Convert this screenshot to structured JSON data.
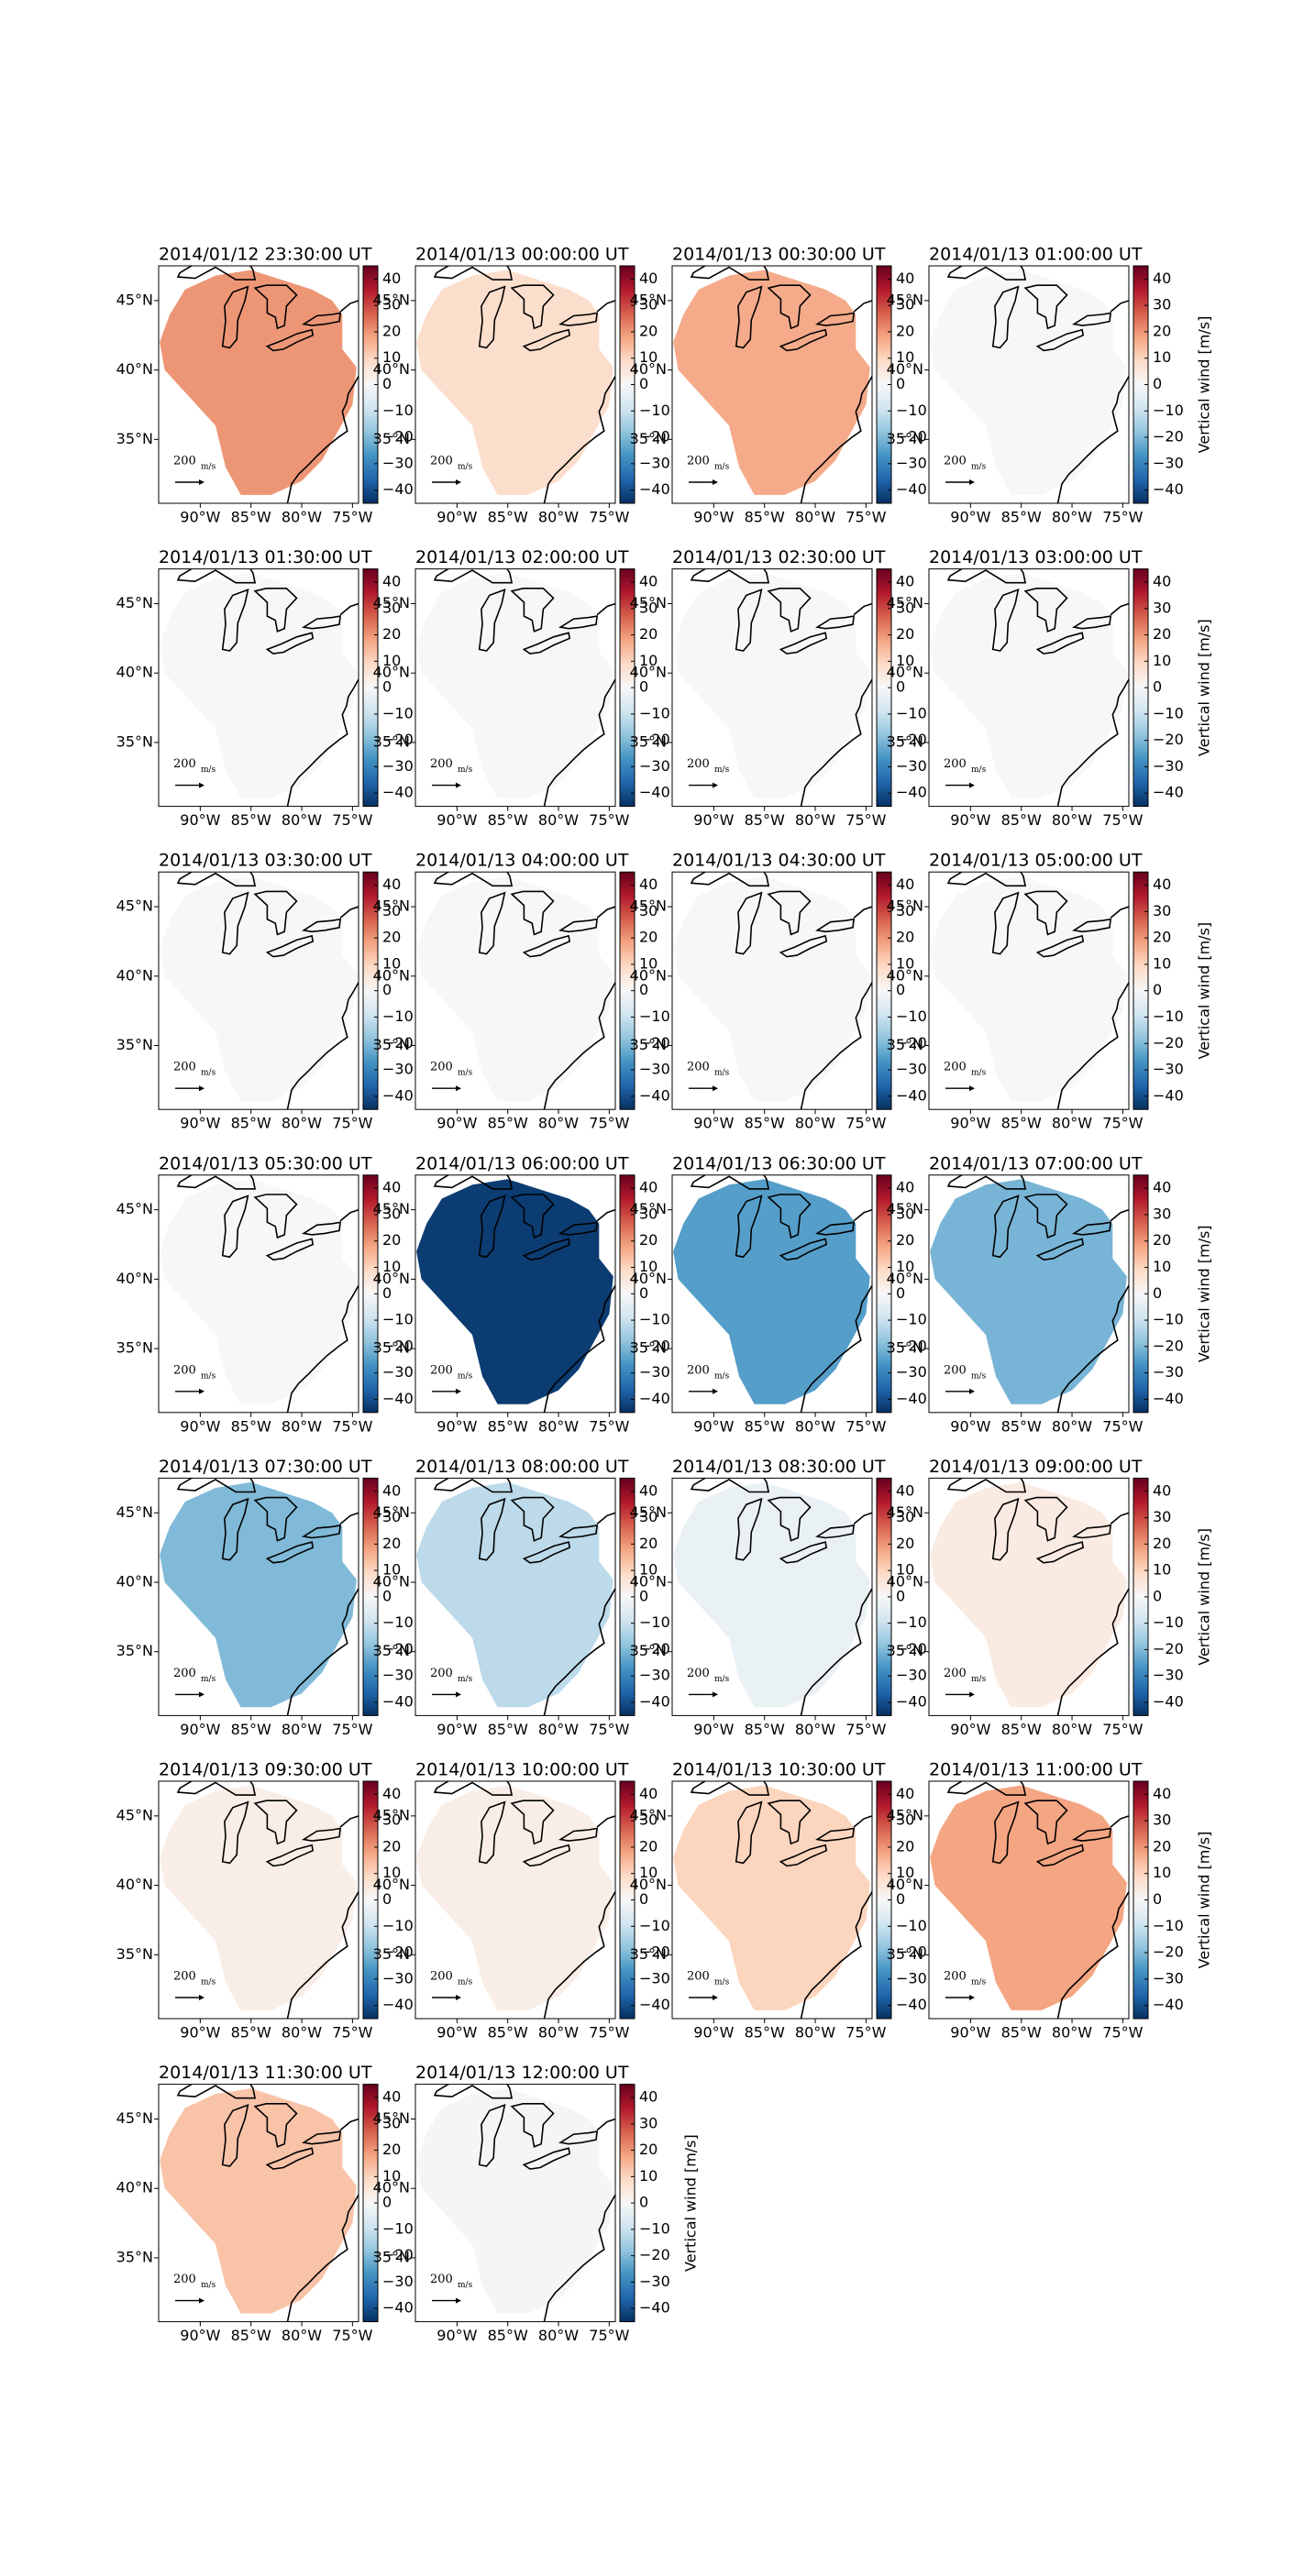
{
  "chart_data": {
    "type": "map-grid",
    "colormap": "RdBu_r",
    "clim": [
      -45,
      45
    ],
    "xlim": [
      -94.1,
      -74.4
    ],
    "ylim": [
      30.4,
      47.5
    ],
    "xticks": [
      {
        "value": -90,
        "label": "90°W"
      },
      {
        "value": -85,
        "label": "85°W"
      },
      {
        "value": -80,
        "label": "80°W"
      },
      {
        "value": -75,
        "label": "75°W"
      }
    ],
    "yticks": [
      {
        "value": 35,
        "label": "35°N"
      },
      {
        "value": 40,
        "label": "40°N"
      },
      {
        "value": 45,
        "label": "45°N"
      }
    ],
    "colorbar_ticks": [
      {
        "value": -40,
        "label": "−40"
      },
      {
        "value": -30,
        "label": "−30"
      },
      {
        "value": -20,
        "label": "−20"
      },
      {
        "value": -10,
        "label": "−10"
      },
      0,
      10,
      20,
      30,
      40
    ],
    "colorbar_label": "Vertical wind [m/s]",
    "quiver_key": {
      "label": "200",
      "unit": "m/s"
    },
    "panels": [
      {
        "title": "2014/01/12 23:30:00 UT",
        "value": 20
      },
      {
        "title": "2014/01/13 00:00:00 UT",
        "value": 8
      },
      {
        "title": "2014/01/13 00:30:00 UT",
        "value": 17
      },
      {
        "title": "2014/01/13 01:00:00 UT",
        "value": 0,
        "colorbar_label": true
      },
      {
        "title": "2014/01/13 01:30:00 UT",
        "value": 0
      },
      {
        "title": "2014/01/13 02:00:00 UT",
        "value": 0
      },
      {
        "title": "2014/01/13 02:30:00 UT",
        "value": 0
      },
      {
        "title": "2014/01/13 03:00:00 UT",
        "value": 0,
        "colorbar_label": true
      },
      {
        "title": "2014/01/13 03:30:00 UT",
        "value": 0
      },
      {
        "title": "2014/01/13 04:00:00 UT",
        "value": 0
      },
      {
        "title": "2014/01/13 04:30:00 UT",
        "value": 0
      },
      {
        "title": "2014/01/13 05:00:00 UT",
        "value": 0,
        "colorbar_label": true
      },
      {
        "title": "2014/01/13 05:30:00 UT",
        "value": 0
      },
      {
        "title": "2014/01/13 06:00:00 UT",
        "value": -43
      },
      {
        "title": "2014/01/13 06:30:00 UT",
        "value": -25
      },
      {
        "title": "2014/01/13 07:00:00 UT",
        "value": -21,
        "colorbar_label": true
      },
      {
        "title": "2014/01/13 07:30:00 UT",
        "value": -20
      },
      {
        "title": "2014/01/13 08:00:00 UT",
        "value": -12
      },
      {
        "title": "2014/01/13 08:30:00 UT",
        "value": -3
      },
      {
        "title": "2014/01/13 09:00:00 UT",
        "value": 4,
        "colorbar_label": true
      },
      {
        "title": "2014/01/13 09:30:00 UT",
        "value": 3
      },
      {
        "title": "2014/01/13 10:00:00 UT",
        "value": 3
      },
      {
        "title": "2014/01/13 10:30:00 UT",
        "value": 10
      },
      {
        "title": "2014/01/13 11:00:00 UT",
        "value": 18,
        "colorbar_label": true
      },
      {
        "title": "2014/01/13 11:30:00 UT",
        "value": 13
      },
      {
        "title": "2014/01/13 12:00:00 UT",
        "value": -1,
        "colorbar_label": true
      }
    ]
  }
}
